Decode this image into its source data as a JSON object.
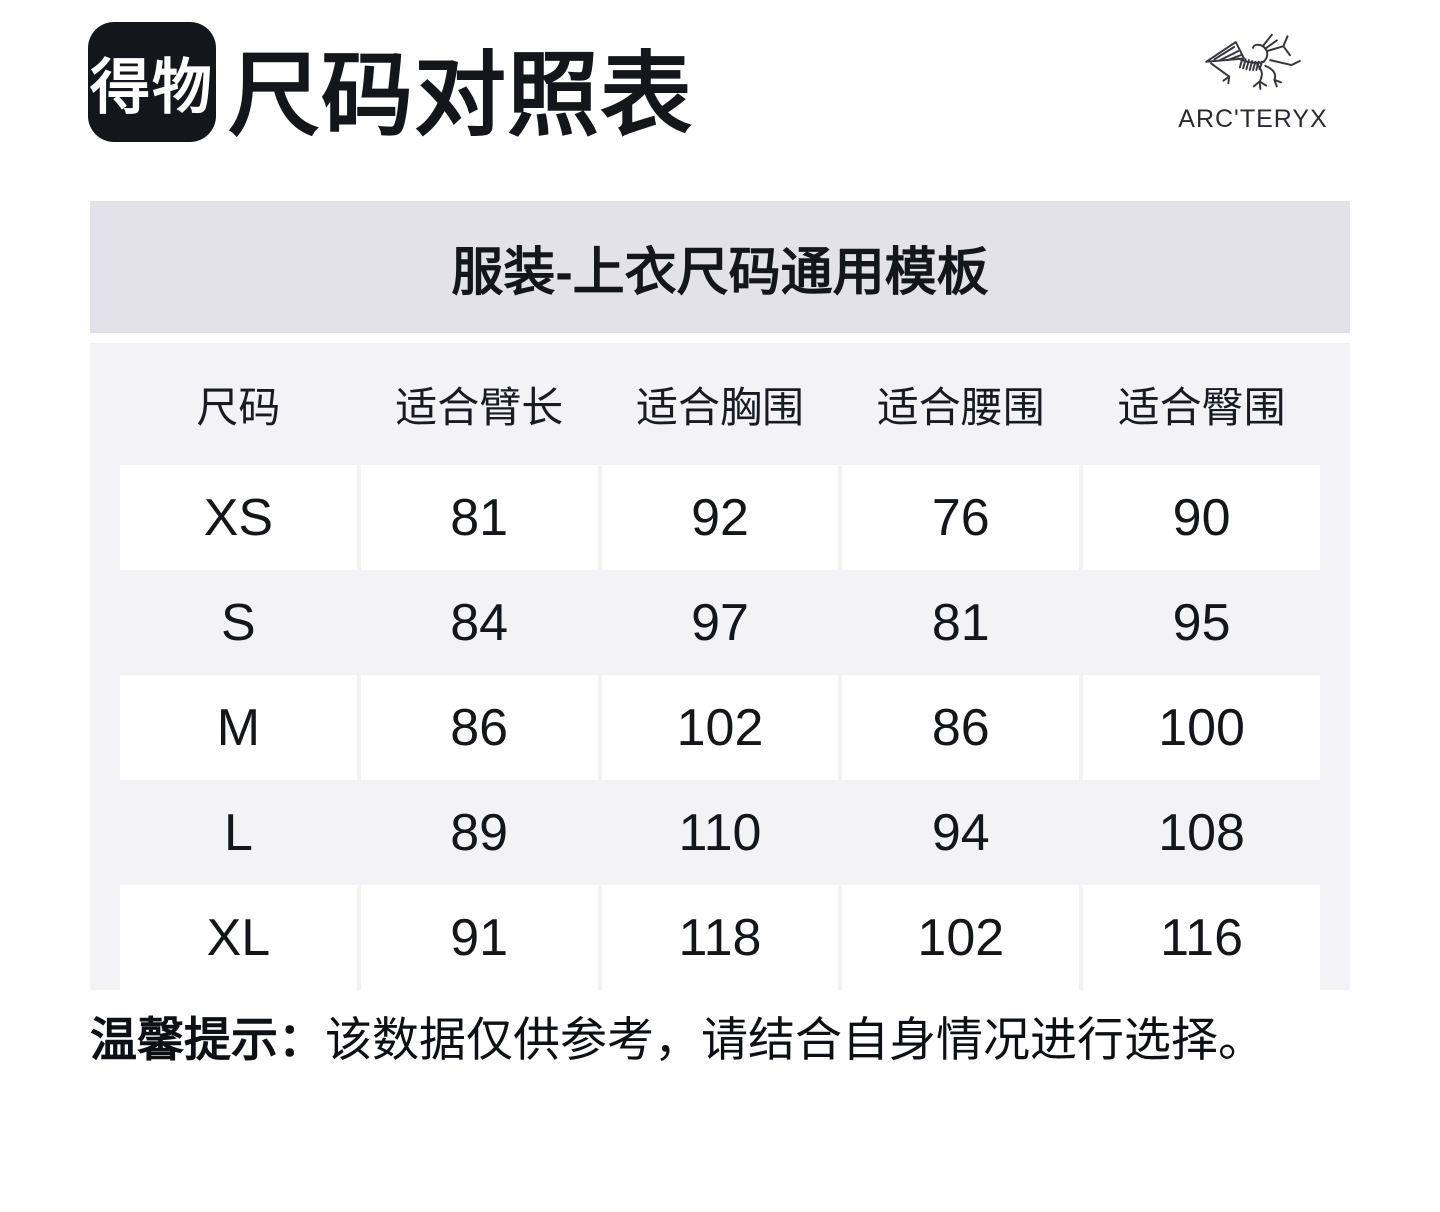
{
  "header": {
    "logo_text": "得物",
    "title": "尺码对照表",
    "brand_wordmark": "ARC'TERYX"
  },
  "banner": {
    "text": "服装-上衣尺码通用模板"
  },
  "chart_data": {
    "type": "table",
    "title": "服装-上衣尺码通用模板",
    "columns": [
      "尺码",
      "适合臂长",
      "适合胸围",
      "适合腰围",
      "适合臀围"
    ],
    "rows": [
      [
        "XS",
        "81",
        "92",
        "76",
        "90"
      ],
      [
        "S",
        "84",
        "97",
        "81",
        "95"
      ],
      [
        "M",
        "86",
        "102",
        "86",
        "100"
      ],
      [
        "L",
        "89",
        "110",
        "94",
        "108"
      ],
      [
        "XL",
        "91",
        "118",
        "102",
        "116"
      ]
    ]
  },
  "note": {
    "label": "温馨提示：",
    "text": "该数据仅供参考，请结合自身情况进行选择。"
  },
  "colors": {
    "page_bg": "#ffffff",
    "logo_bg": "#15161b",
    "banner_bg": "#e3e2e8",
    "table_bg": "#f3f3f6",
    "cell_bg": "#ffffff",
    "text": "#15161a"
  }
}
